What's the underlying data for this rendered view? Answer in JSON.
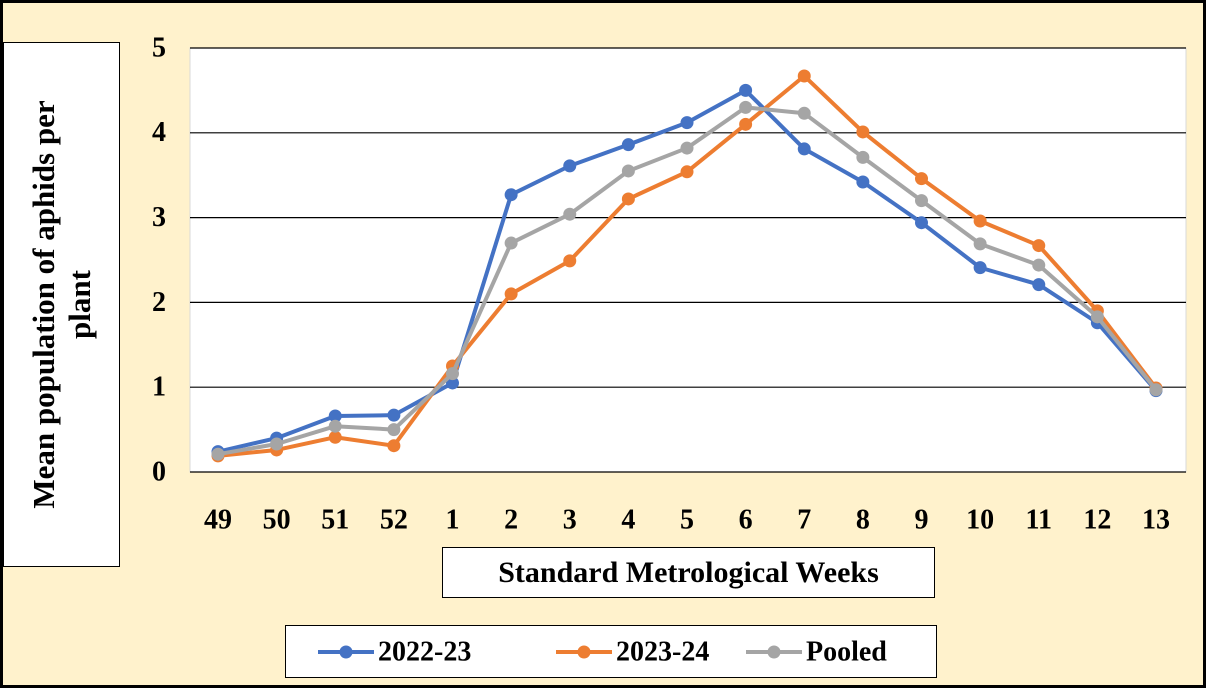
{
  "chart_data": {
    "type": "line",
    "x_label": "Standard Metrological Weeks",
    "y_label": "Mean population of aphids per plant",
    "categories": [
      "49",
      "50",
      "51",
      "52",
      "1",
      "2",
      "3",
      "4",
      "5",
      "6",
      "7",
      "8",
      "9",
      "10",
      "11",
      "12",
      "13"
    ],
    "series": [
      {
        "name": "2022-23",
        "color": "#4472c4",
        "values": [
          0.24,
          0.4,
          0.66,
          0.67,
          1.05,
          3.27,
          3.61,
          3.86,
          4.12,
          4.5,
          3.81,
          3.42,
          2.94,
          2.41,
          2.21,
          1.76,
          0.96
        ]
      },
      {
        "name": "2023-24",
        "color": "#ed7d31",
        "values": [
          0.19,
          0.26,
          0.41,
          0.31,
          1.25,
          2.1,
          2.49,
          3.22,
          3.54,
          4.1,
          4.67,
          4.01,
          3.46,
          2.96,
          2.67,
          1.9,
          0.99
        ]
      },
      {
        "name": "Pooled",
        "color": "#a5a5a5",
        "values": [
          0.21,
          0.33,
          0.54,
          0.5,
          1.16,
          2.7,
          3.04,
          3.55,
          3.82,
          4.3,
          4.23,
          3.71,
          3.2,
          2.69,
          2.44,
          1.83,
          0.97
        ]
      }
    ],
    "ylim": [
      0,
      5
    ],
    "yticks": [
      0,
      1,
      2,
      3,
      4,
      5
    ],
    "grid": true,
    "legend": "bottom"
  }
}
